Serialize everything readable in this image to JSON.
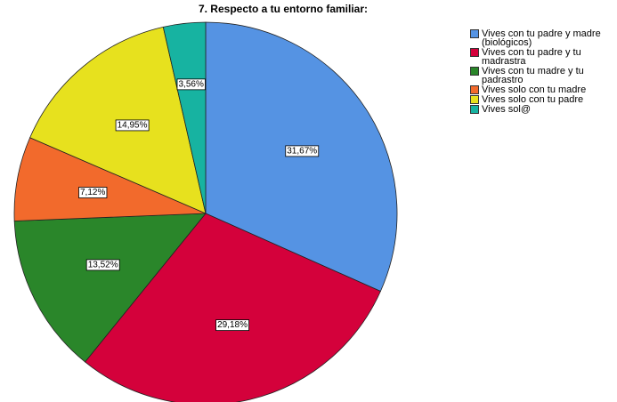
{
  "chart_data": {
    "type": "pie",
    "title": "7. Respecto a tu entorno familiar:",
    "categories": [
      "Vives con tu padre y madre (biológicos)",
      "Vives con tu padre y tu madrastra",
      "Vives con tu madre y tu padrastro",
      "Vives solo con tu madre",
      "Vives solo con tu padre",
      "Vives sol@"
    ],
    "values": [
      31.67,
      29.18,
      13.52,
      7.12,
      14.95,
      3.56
    ],
    "value_labels": [
      "31,67%",
      "29,18%",
      "13,52%",
      "7,12%",
      "14,95%",
      "3,56%"
    ],
    "colors": [
      "#5593e3",
      "#d4013b",
      "#2a862a",
      "#f26a2c",
      "#e7e11e",
      "#17b3a1"
    ],
    "legend": "right"
  }
}
